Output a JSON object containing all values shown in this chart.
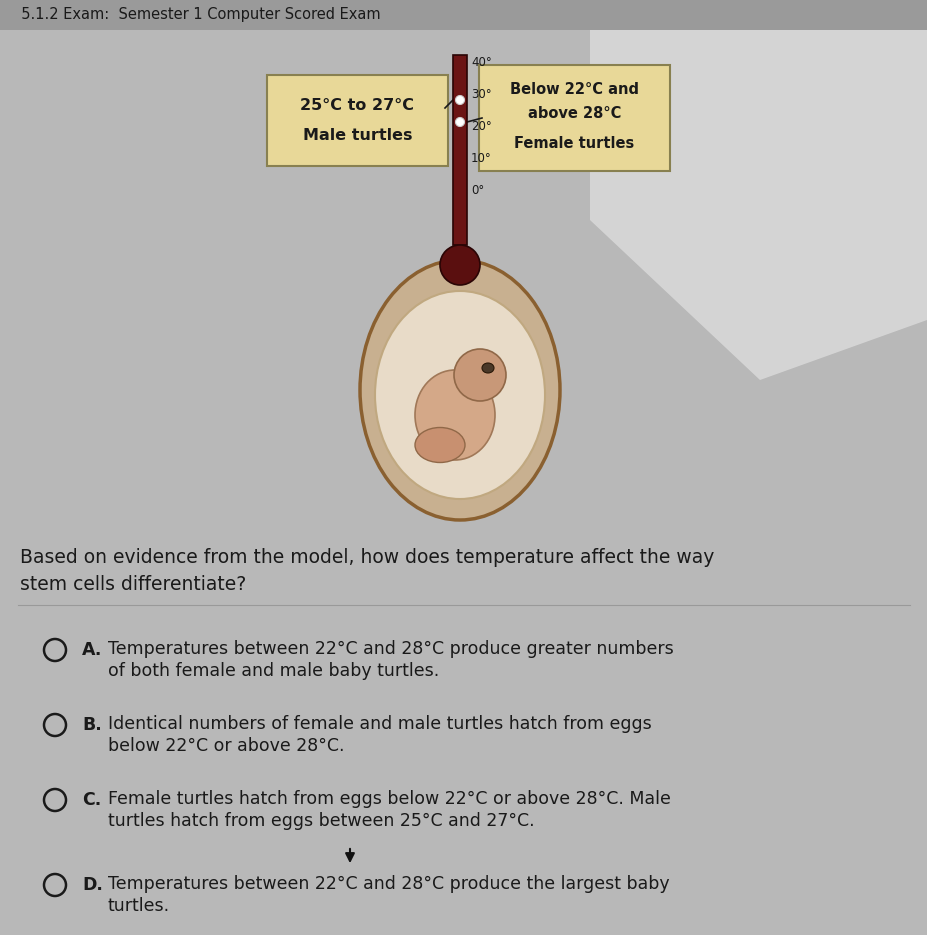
{
  "bg_color": "#b8b8b8",
  "header_bg": "#9a9a9a",
  "header_text": "  5.1.2 Exam:  Semester 1 Computer Scored Exam",
  "header_fontsize": 10.5,
  "question_text": "Based on evidence from the model, how does temperature affect the way\nstem cells differentiate?",
  "question_fontsize": 13.5,
  "answer_fontsize": 12.5,
  "answers": [
    {
      "letter": "A.",
      "text": "Temperatures between 22°C and 28°C produce greater numbers\nof both female and male baby turtles."
    },
    {
      "letter": "B.",
      "text": "Identical numbers of female and male turtles hatch from eggs\nbelow 22°C or above 28°C."
    },
    {
      "letter": "C.",
      "text": "Female turtles hatch from eggs below 22°C or above 28°C. Male\nturtles hatch from eggs between 25°C and 27°C."
    },
    {
      "letter": "D.",
      "text": "Temperatures between 22°C and 28°C produce the largest baby\nturtles."
    }
  ],
  "left_box_line1": "25°C to 27°C",
  "left_box_line2": "Male turtles",
  "right_box_line1": "Below 22°C and",
  "right_box_line2": "above 28°C",
  "right_box_line3": "Female turtles",
  "thermometer_temps": [
    "40°",
    "30°",
    "20°",
    "10°",
    "0°"
  ],
  "box_bg_color": "#e8d898",
  "box_border_color": "#888050",
  "text_color": "#1a1a1a",
  "dark_red": "#5a0f0f",
  "thermo_tube_color": "#6b1515",
  "egg_outer": "#c8b090",
  "egg_border": "#8a6030",
  "embryo_color": "#c09878",
  "embryo_dark": "#a07858",
  "white_area_color": "#dcdcdc",
  "divider_color": "#999999",
  "cursor_color": "#111111"
}
